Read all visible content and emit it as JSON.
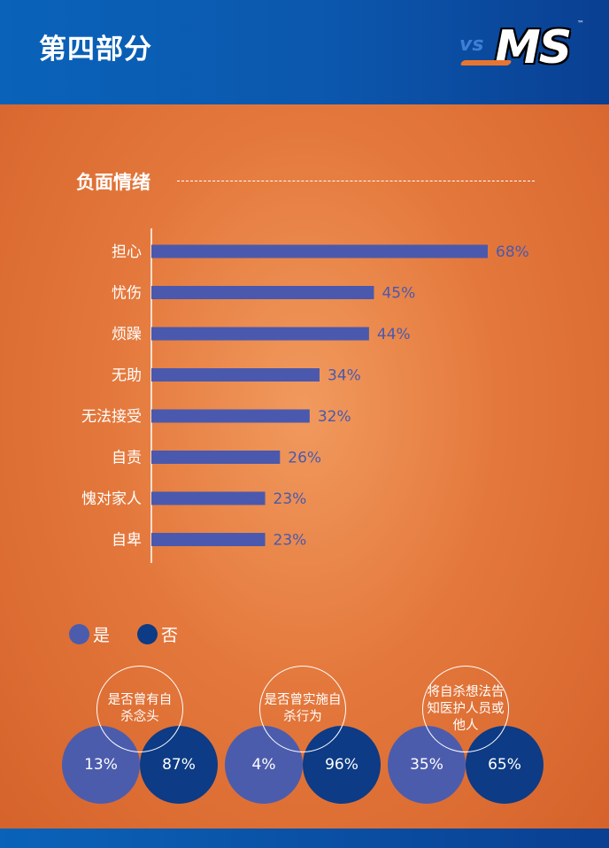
{
  "header": {
    "title": "第四部分"
  },
  "logo": {
    "vs": "vs",
    "ms": "MS",
    "tm": "™"
  },
  "section": {
    "title": "负面情绪"
  },
  "colors": {
    "yes": "#4c5cad",
    "no": "#0d3b85",
    "bar": "#4a59ad"
  },
  "legend": [
    {
      "label": "是",
      "color": "#4c5cad"
    },
    {
      "label": "否",
      "color": "#0d3b85"
    }
  ],
  "chart_data": {
    "type": "bar",
    "orientation": "horizontal",
    "categories": [
      "担心",
      "忧伤",
      "烦躁",
      "无助",
      "无法接受",
      "自责",
      "愧对家人",
      "自卑"
    ],
    "values": [
      68,
      45,
      44,
      34,
      32,
      26,
      23,
      23
    ],
    "value_labels": [
      "68%",
      "45%",
      "44%",
      "34%",
      "32%",
      "26%",
      "23%",
      "23%"
    ],
    "title": "负面情绪",
    "xlim": [
      0,
      68
    ]
  },
  "survey": [
    {
      "question": "是否曾有自杀念头",
      "yes": "13%",
      "no": "87%"
    },
    {
      "question": "是否曾实施自杀行为",
      "yes": "4%",
      "no": "96%"
    },
    {
      "question": "将自杀想法告知医护人员或他人",
      "yes": "35%",
      "no": "65%"
    }
  ]
}
